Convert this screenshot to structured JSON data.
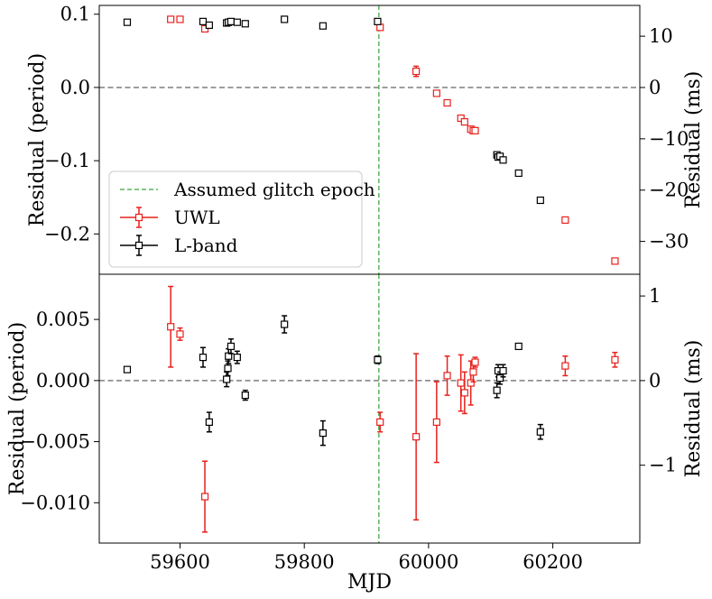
{
  "chart_data": [
    {
      "type": "scatter",
      "panel": "top",
      "xlabel": "MJD",
      "ylabel": "Residual (period)",
      "ylabel_right": "Residual (ms)",
      "xlim": [
        59470,
        60340
      ],
      "ylim": [
        -0.255,
        0.112
      ],
      "ylim_right": [
        -36.4,
        16.0
      ],
      "yticks": [
        0.1,
        0.0,
        -0.1,
        -0.2
      ],
      "ytick_labels": [
        "0.1",
        "0.0",
        "−0.1",
        "−0.2"
      ],
      "yticks_right": [
        10,
        0,
        -10,
        -20,
        -30
      ],
      "ytick_labels_right": [
        "10",
        "0",
        "−10",
        "−20",
        "−30"
      ],
      "zero_line": 0,
      "glitch_epoch_mjd": 59920,
      "legend": {
        "location": "lower-left",
        "entries": [
          "Assumed glitch epoch",
          "UWL",
          "L-band"
        ]
      },
      "series": [
        {
          "name": "UWL",
          "color": "#e8211c",
          "x": [
            59585,
            59600,
            59640,
            59922,
            59980,
            60013,
            60030,
            60052,
            60058,
            60068,
            60072,
            60075,
            60220,
            60300
          ],
          "y": [
            0.093,
            0.093,
            0.08,
            0.082,
            0.022,
            -0.008,
            -0.021,
            -0.042,
            -0.047,
            -0.057,
            -0.059,
            -0.059,
            -0.181,
            -0.237
          ],
          "yerr": [
            0.001,
            0.001,
            0.001,
            0.001,
            0.007,
            0.002,
            0.001,
            0.001,
            0.001,
            0.001,
            0.001,
            0.001,
            0.001,
            0.001
          ]
        },
        {
          "name": "L-band",
          "color": "#000000",
          "x": [
            59515,
            59637,
            59647,
            59675,
            59678,
            59682,
            59692,
            59705,
            59768,
            59830,
            59918,
            60110,
            60112,
            60115,
            60120,
            60145,
            60180
          ],
          "y": [
            0.089,
            0.09,
            0.085,
            0.088,
            0.089,
            0.09,
            0.089,
            0.087,
            0.093,
            0.084,
            0.09,
            -0.092,
            -0.095,
            -0.094,
            -0.099,
            -0.117,
            -0.154
          ],
          "yerr": [
            0.001,
            0.001,
            0.001,
            0.001,
            0.001,
            0.001,
            0.001,
            0.001,
            0.001,
            0.001,
            0.001,
            0.001,
            0.001,
            0.001,
            0.001,
            0.001,
            0.001
          ]
        }
      ]
    },
    {
      "type": "scatter",
      "panel": "bottom",
      "xlabel": "MJD",
      "ylabel": "Residual (period)",
      "ylabel_right": "Residual (ms)",
      "xlim": [
        59470,
        60340
      ],
      "ylim": [
        -0.0133,
        0.0087
      ],
      "ylim_right": [
        -1.92,
        1.257
      ],
      "xticks": [
        59600,
        59800,
        60000,
        60200
      ],
      "xtick_labels": [
        "59600",
        "59800",
        "60000",
        "60200"
      ],
      "yticks": [
        0.005,
        0.0,
        -0.005,
        -0.01
      ],
      "ytick_labels": [
        "0.005",
        "0.000",
        "−0.005",
        "−0.010"
      ],
      "yticks_right": [
        1,
        0,
        -1
      ],
      "ytick_labels_right": [
        "1",
        "0",
        "−1"
      ],
      "zero_line": 0,
      "glitch_epoch_mjd": 59920,
      "series": [
        {
          "name": "UWL",
          "color": "#e8211c",
          "x": [
            59585,
            59600,
            59640,
            59922,
            59980,
            60013,
            60030,
            60052,
            60058,
            60068,
            60072,
            60075,
            60220,
            60300
          ],
          "y": [
            0.0044,
            0.0038,
            -0.0095,
            -0.0034,
            -0.0046,
            -0.0034,
            0.0004,
            -0.0002,
            -0.001,
            -0.0002,
            0.0007,
            0.0015,
            0.0012,
            0.0017
          ],
          "yerr": [
            0.0033,
            0.0005,
            0.0029,
            0.0008,
            0.0068,
            0.0033,
            0.0016,
            0.0023,
            0.0017,
            0.0018,
            0.0008,
            0.0004,
            0.0008,
            0.0006
          ]
        },
        {
          "name": "L-band",
          "color": "#000000",
          "x": [
            59515,
            59637,
            59647,
            59675,
            59677,
            59678,
            59682,
            59692,
            59705,
            59768,
            59830,
            59918,
            60110,
            60112,
            60115,
            60120,
            60145,
            60180
          ],
          "y": [
            0.0009,
            0.0019,
            -0.0034,
            0.0001,
            0.001,
            0.002,
            0.0028,
            0.0019,
            -0.0012,
            0.0046,
            -0.0043,
            0.0017,
            -0.0008,
            0.0008,
            0.0002,
            0.0008,
            0.0028,
            -0.0042
          ],
          "yerr": [
            0.0001,
            0.0008,
            0.0008,
            0.0006,
            0.0006,
            0.0006,
            0.0006,
            0.0005,
            0.0004,
            0.0007,
            0.001,
            0.0003,
            0.0006,
            0.0005,
            0.0005,
            0.0005,
            0.0002,
            0.0006
          ]
        }
      ]
    }
  ]
}
